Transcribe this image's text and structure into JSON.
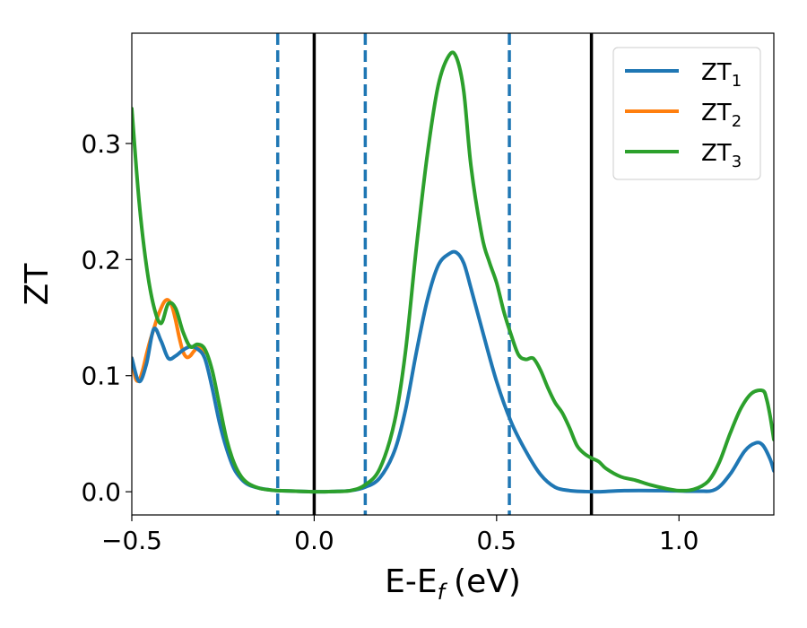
{
  "chart_data": {
    "type": "line",
    "title": "",
    "xlabel_main": "E-E",
    "xlabel_sub": "f",
    "xlabel_unit": "(eV)",
    "ylabel": "ZT",
    "xlim": [
      -0.5,
      1.26
    ],
    "ylim": [
      -0.02,
      0.395
    ],
    "xticks": [
      -0.5,
      0.0,
      0.5,
      1.0
    ],
    "xtick_labels": [
      "−0.5",
      "0.0",
      "0.5",
      "1.0"
    ],
    "yticks": [
      0.0,
      0.1,
      0.2,
      0.3
    ],
    "ytick_labels": [
      "0.0",
      "0.1",
      "0.2",
      "0.3"
    ],
    "legend_position": "top-right",
    "vlines": [
      {
        "x": -0.1,
        "style": "dashed",
        "color": "#1f77b4"
      },
      {
        "x": 0.0,
        "style": "solid",
        "color": "#000000"
      },
      {
        "x": 0.14,
        "style": "dashed",
        "color": "#1f77b4"
      },
      {
        "x": 0.535,
        "style": "dashed",
        "color": "#1f77b4"
      },
      {
        "x": 0.76,
        "style": "solid",
        "color": "#000000"
      }
    ],
    "series": [
      {
        "name": "ZT",
        "subscript": "1",
        "color": "#1f77b4",
        "x": [
          -0.5,
          -0.48,
          -0.46,
          -0.44,
          -0.42,
          -0.4,
          -0.38,
          -0.36,
          -0.34,
          -0.32,
          -0.3,
          -0.28,
          -0.26,
          -0.24,
          -0.22,
          -0.2,
          -0.18,
          -0.15,
          -0.12,
          -0.1,
          -0.05,
          0.0,
          0.05,
          0.1,
          0.14,
          0.18,
          0.22,
          0.25,
          0.28,
          0.31,
          0.34,
          0.37,
          0.39,
          0.41,
          0.43,
          0.46,
          0.5,
          0.54,
          0.58,
          0.62,
          0.66,
          0.7,
          0.74,
          0.78,
          0.85,
          0.95,
          1.05,
          1.1,
          1.14,
          1.18,
          1.21,
          1.23,
          1.25,
          1.26
        ],
        "y": [
          0.115,
          0.095,
          0.11,
          0.14,
          0.13,
          0.115,
          0.117,
          0.122,
          0.125,
          0.123,
          0.115,
          0.09,
          0.06,
          0.037,
          0.02,
          0.011,
          0.006,
          0.003,
          0.0015,
          0.001,
          0.0005,
          0.0,
          0.0002,
          0.001,
          0.004,
          0.012,
          0.035,
          0.07,
          0.12,
          0.165,
          0.195,
          0.205,
          0.206,
          0.197,
          0.175,
          0.14,
          0.095,
          0.06,
          0.035,
          0.015,
          0.004,
          0.001,
          0.0002,
          0.0,
          0.001,
          0.001,
          0.0005,
          0.002,
          0.015,
          0.035,
          0.042,
          0.04,
          0.028,
          0.018
        ]
      },
      {
        "name": "ZT",
        "subscript": "2",
        "color": "#ff7f0e",
        "x": [
          -0.5,
          -0.49,
          -0.48,
          -0.47,
          -0.46,
          -0.45,
          -0.44,
          -0.43,
          -0.42,
          -0.41,
          -0.4,
          -0.39,
          -0.38,
          -0.37,
          -0.36,
          -0.35,
          -0.34,
          -0.33,
          -0.32,
          -0.31,
          -0.3
        ],
        "y": [
          0.115,
          0.098,
          0.096,
          0.105,
          0.118,
          0.13,
          0.14,
          0.15,
          0.158,
          0.164,
          0.165,
          0.16,
          0.148,
          0.133,
          0.121,
          0.116,
          0.117,
          0.121,
          0.124,
          0.124,
          0.12
        ]
      },
      {
        "name": "ZT",
        "subscript": "3",
        "color": "#2ca02c",
        "x": [
          -0.5,
          -0.48,
          -0.46,
          -0.44,
          -0.42,
          -0.4,
          -0.38,
          -0.36,
          -0.34,
          -0.32,
          -0.3,
          -0.28,
          -0.26,
          -0.24,
          -0.22,
          -0.2,
          -0.18,
          -0.15,
          -0.12,
          -0.1,
          -0.05,
          0.0,
          0.05,
          0.1,
          0.14,
          0.18,
          0.22,
          0.25,
          0.28,
          0.31,
          0.34,
          0.37,
          0.39,
          0.41,
          0.43,
          0.46,
          0.48,
          0.5,
          0.52,
          0.54,
          0.56,
          0.58,
          0.6,
          0.62,
          0.64,
          0.66,
          0.68,
          0.7,
          0.72,
          0.74,
          0.76,
          0.78,
          0.8,
          0.84,
          0.88,
          0.92,
          0.96,
          1.0,
          1.04,
          1.08,
          1.11,
          1.14,
          1.17,
          1.2,
          1.23,
          1.24,
          1.25,
          1.26
        ],
        "y": [
          0.33,
          0.25,
          0.195,
          0.16,
          0.145,
          0.162,
          0.158,
          0.138,
          0.125,
          0.127,
          0.123,
          0.105,
          0.075,
          0.045,
          0.025,
          0.013,
          0.007,
          0.003,
          0.0015,
          0.001,
          0.0005,
          0.0,
          0.0002,
          0.001,
          0.006,
          0.02,
          0.06,
          0.12,
          0.21,
          0.29,
          0.35,
          0.376,
          0.374,
          0.345,
          0.28,
          0.22,
          0.198,
          0.18,
          0.155,
          0.135,
          0.118,
          0.114,
          0.115,
          0.105,
          0.09,
          0.077,
          0.068,
          0.055,
          0.04,
          0.033,
          0.029,
          0.026,
          0.02,
          0.013,
          0.01,
          0.006,
          0.003,
          0.001,
          0.002,
          0.009,
          0.025,
          0.05,
          0.072,
          0.085,
          0.087,
          0.08,
          0.065,
          0.045
        ]
      }
    ]
  }
}
